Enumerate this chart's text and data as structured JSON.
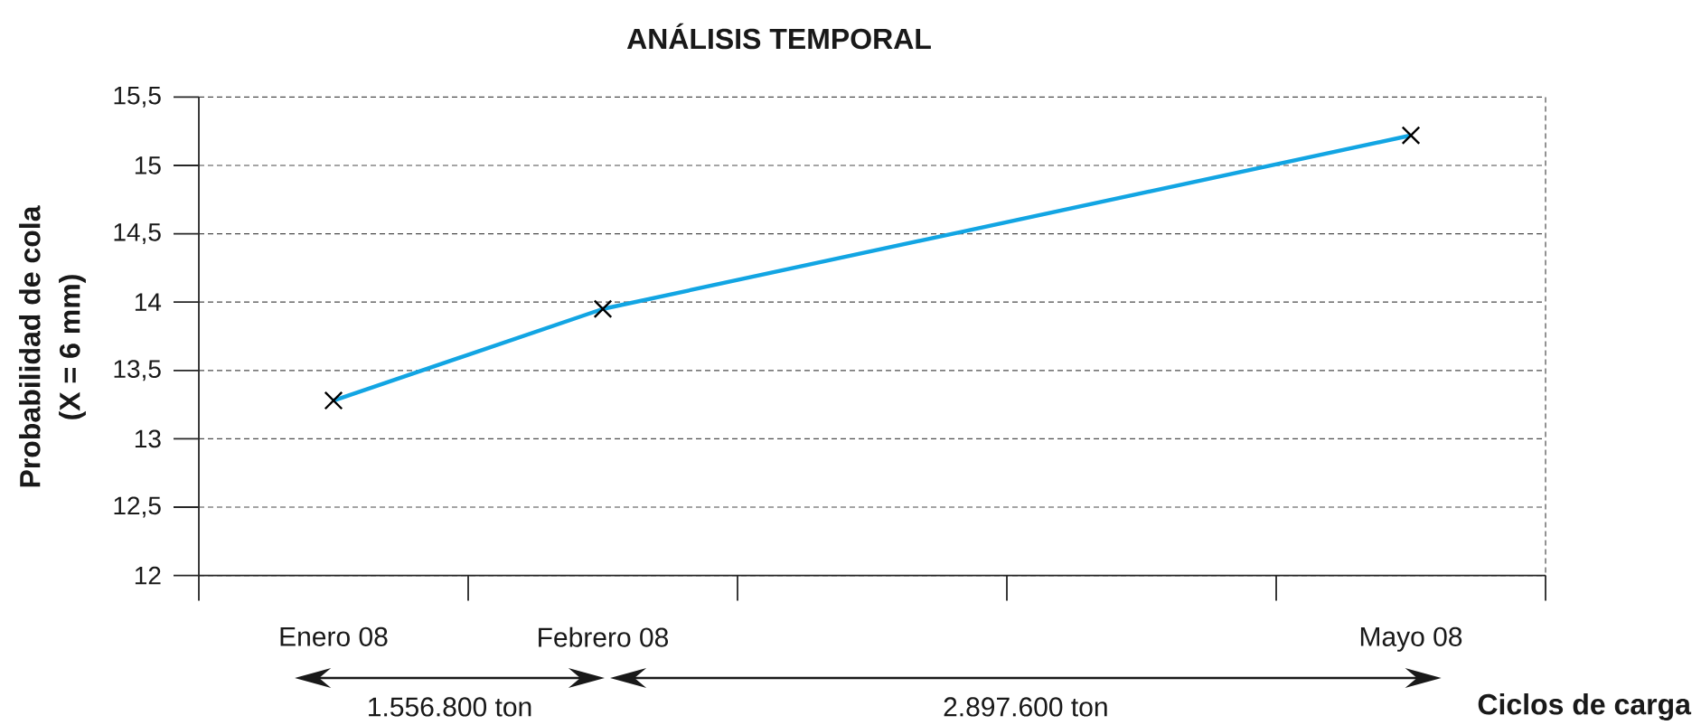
{
  "chart_data": {
    "type": "line",
    "title": "ANÁLISIS TEMPORAL",
    "xlabel": "Ciclos de carga",
    "ylabel": "Probabilidad de cola (X = 6 mm)",
    "categories": [
      "Enero 08",
      "Febrero 08",
      null,
      null,
      "Mayo 08"
    ],
    "values": [
      13.28,
      13.95,
      null,
      null,
      15.22
    ],
    "color": "#12a5e3",
    "ylim": [
      12,
      15.5
    ],
    "yticks": [
      12,
      {
        "value": 12.5,
        "label": "12,5"
      },
      13,
      {
        "value": 13.5,
        "label": "13,5"
      },
      14,
      {
        "value": 14.5,
        "label": "14,5"
      },
      15,
      {
        "value": 15.5,
        "label": "15,5"
      }
    ],
    "grid": "y",
    "marker": "cross",
    "line_style": "solid",
    "annotations": [
      "1.556.800 ton",
      "2.897.600 ton"
    ]
  }
}
